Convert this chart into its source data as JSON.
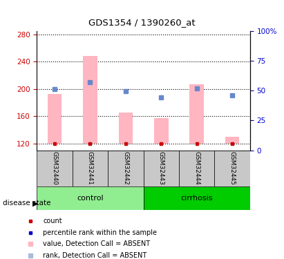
{
  "title": "GDS1354 / 1390260_at",
  "samples": [
    "GSM32440",
    "GSM32441",
    "GSM32442",
    "GSM32443",
    "GSM32444",
    "GSM32445"
  ],
  "bar_values": [
    193,
    248,
    165,
    157,
    207,
    130
  ],
  "bar_baseline": 120,
  "bar_color": "#FFB6C1",
  "blue_square_values": [
    200,
    210,
    197,
    188,
    201,
    191
  ],
  "blue_square_color": "#6688CC",
  "red_dot_value": 120,
  "red_dot_color": "#CC0000",
  "ylim_left": [
    110,
    285
  ],
  "yticks_left": [
    120,
    160,
    200,
    240,
    280
  ],
  "ylim_right": [
    0,
    100
  ],
  "yticks_right": [
    0,
    25,
    50,
    75,
    100
  ],
  "ytick_labels_right": [
    "0",
    "25",
    "50",
    "75",
    "100%"
  ],
  "left_axis_color": "#CC0000",
  "right_axis_color": "#0000CC",
  "group_labels": [
    "control",
    "cirrhosis"
  ],
  "group_ranges": [
    [
      0,
      3
    ],
    [
      3,
      6
    ]
  ],
  "group_colors": [
    "#90EE90",
    "#00CC00"
  ],
  "label_area_color": "#C8C8C8",
  "legend_items": [
    {
      "label": "count",
      "color": "#CC0000",
      "marker": "s",
      "marker_size": 6
    },
    {
      "label": "percentile rank within the sample",
      "color": "#0000CC",
      "marker": "s",
      "marker_size": 6
    },
    {
      "label": "value, Detection Call = ABSENT",
      "color": "#FFB6C1",
      "marker": "s",
      "marker_size": 8
    },
    {
      "label": "rank, Detection Call = ABSENT",
      "color": "#AABBDD",
      "marker": "s",
      "marker_size": 8
    }
  ],
  "disease_state_label": "disease state",
  "background_color": "#FFFFFF",
  "plot_bg_color": "#FFFFFF"
}
